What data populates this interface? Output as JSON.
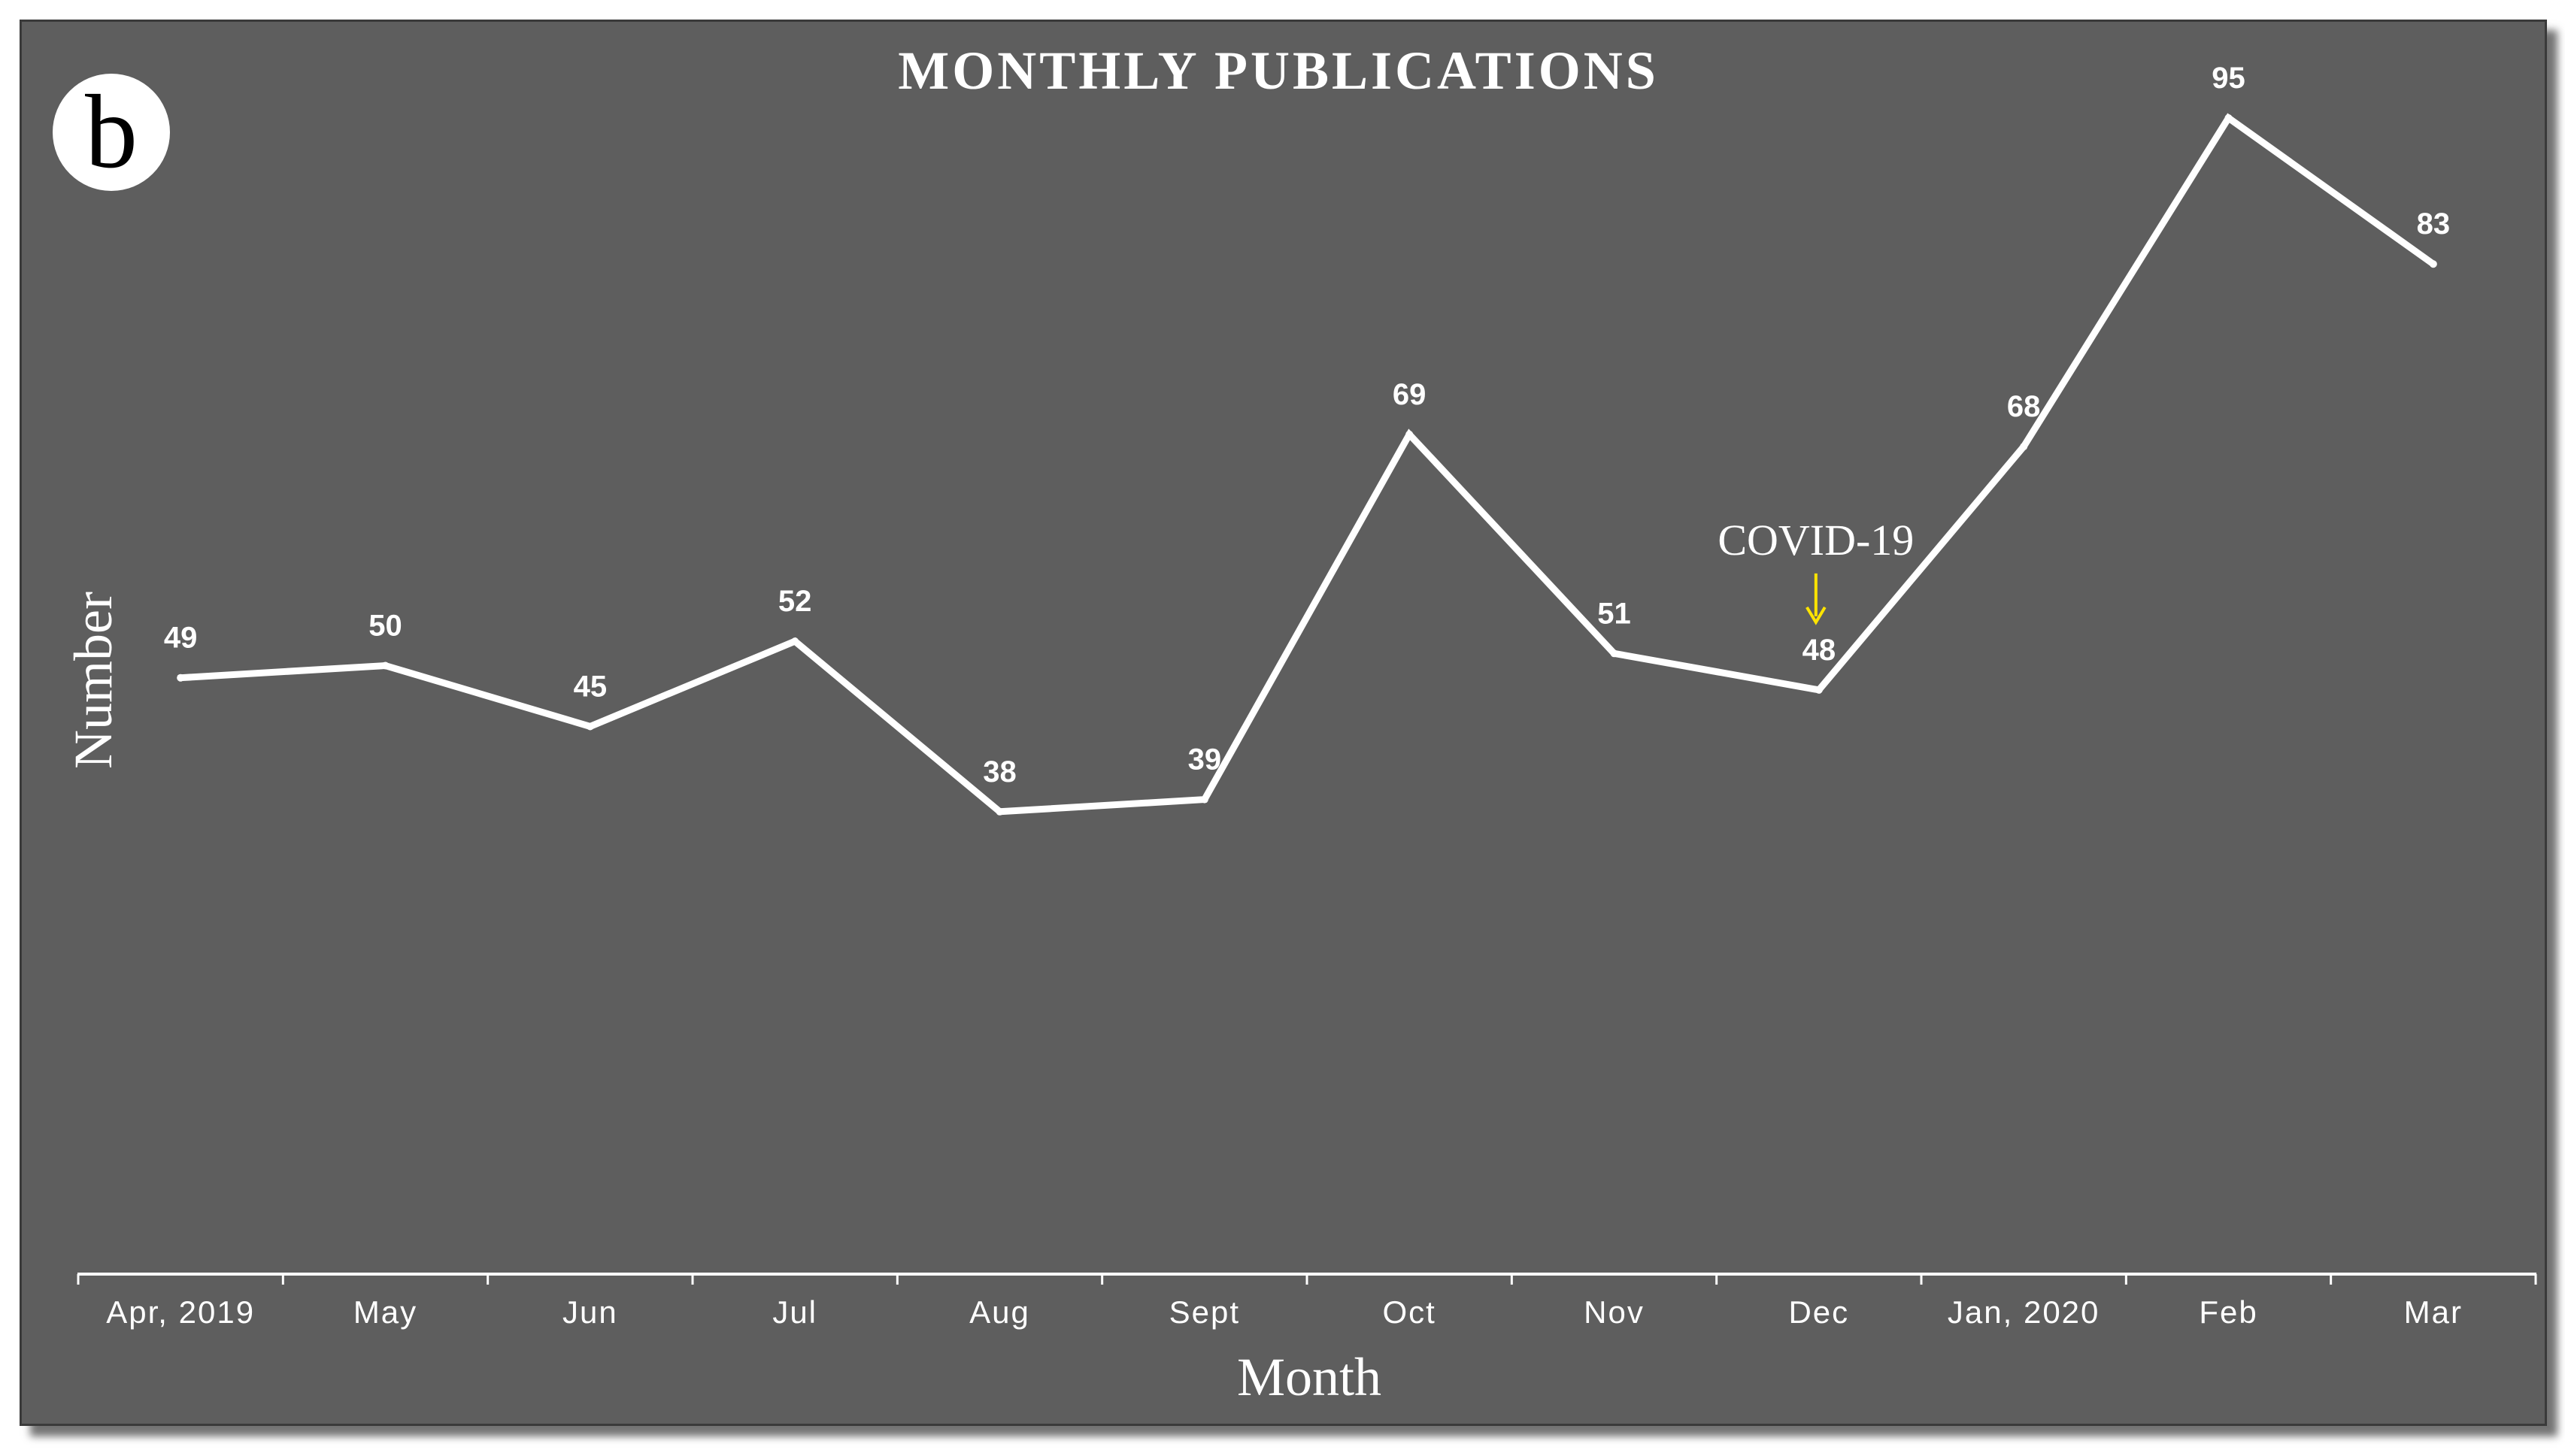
{
  "badge": {
    "label": "b"
  },
  "chart_data": {
    "type": "line",
    "title": "MONTHLY  PUBLICATIONS",
    "xlabel": "Month",
    "ylabel": "Number",
    "categories": [
      "Apr, 2019",
      "May",
      "Jun",
      "Jul",
      "Aug",
      "Sept",
      "Oct",
      "Nov",
      "Dec",
      "Jan, 2020",
      "Feb",
      "Mar"
    ],
    "series": [
      {
        "values": [
          49,
          50,
          45,
          52,
          38,
          39,
          69,
          51,
          48,
          68,
          95,
          83
        ]
      }
    ],
    "ylim": [
      0,
      100
    ],
    "data_labels": true,
    "grid": false,
    "drop_lines": true,
    "annotations": [
      {
        "text": "COVID-19",
        "category": "Dec",
        "arrow": "down",
        "arrow_color": "#ffe400"
      }
    ],
    "colors": {
      "background": "#5e5e5e",
      "line": "#ffffff",
      "text": "#ffffff",
      "annotation_arrow": "#ffe400"
    }
  }
}
